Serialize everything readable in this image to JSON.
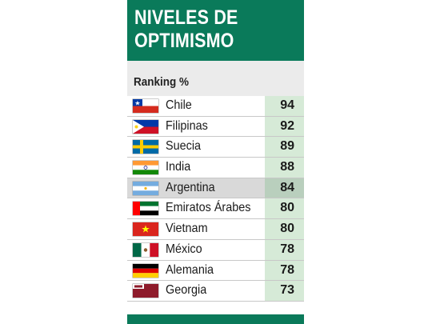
{
  "title_lines": [
    "NIVELES DE",
    "OPTIMISMO"
  ],
  "subtitle": "Ranking %",
  "colors": {
    "header": "#0a7a5a",
    "value_cell": "#d6ead7",
    "highlight_row": "#d9d9d9"
  },
  "chart_data": {
    "type": "table",
    "title": "NIVELES DE OPTIMISMO",
    "subtitle": "Ranking %",
    "rows": [
      {
        "country": "Chile",
        "value": 94,
        "flag": "chile-flag-icon"
      },
      {
        "country": "Filipinas",
        "value": 92,
        "flag": "philippines-flag-icon"
      },
      {
        "country": "Suecia",
        "value": 89,
        "flag": "sweden-flag-icon"
      },
      {
        "country": "India",
        "value": 88,
        "flag": "india-flag-icon"
      },
      {
        "country": "Argentina",
        "value": 84,
        "flag": "argentina-flag-icon",
        "highlighted": true
      },
      {
        "country": "Emiratos Árabes",
        "value": 80,
        "flag": "uae-flag-icon"
      },
      {
        "country": "Vietnam",
        "value": 80,
        "flag": "vietnam-flag-icon"
      },
      {
        "country": "México",
        "value": 78,
        "flag": "mexico-flag-icon"
      },
      {
        "country": "Alemania",
        "value": 78,
        "flag": "germany-flag-icon"
      },
      {
        "country": "Georgia",
        "value": 73,
        "flag": "georgia-flag-icon"
      }
    ]
  }
}
